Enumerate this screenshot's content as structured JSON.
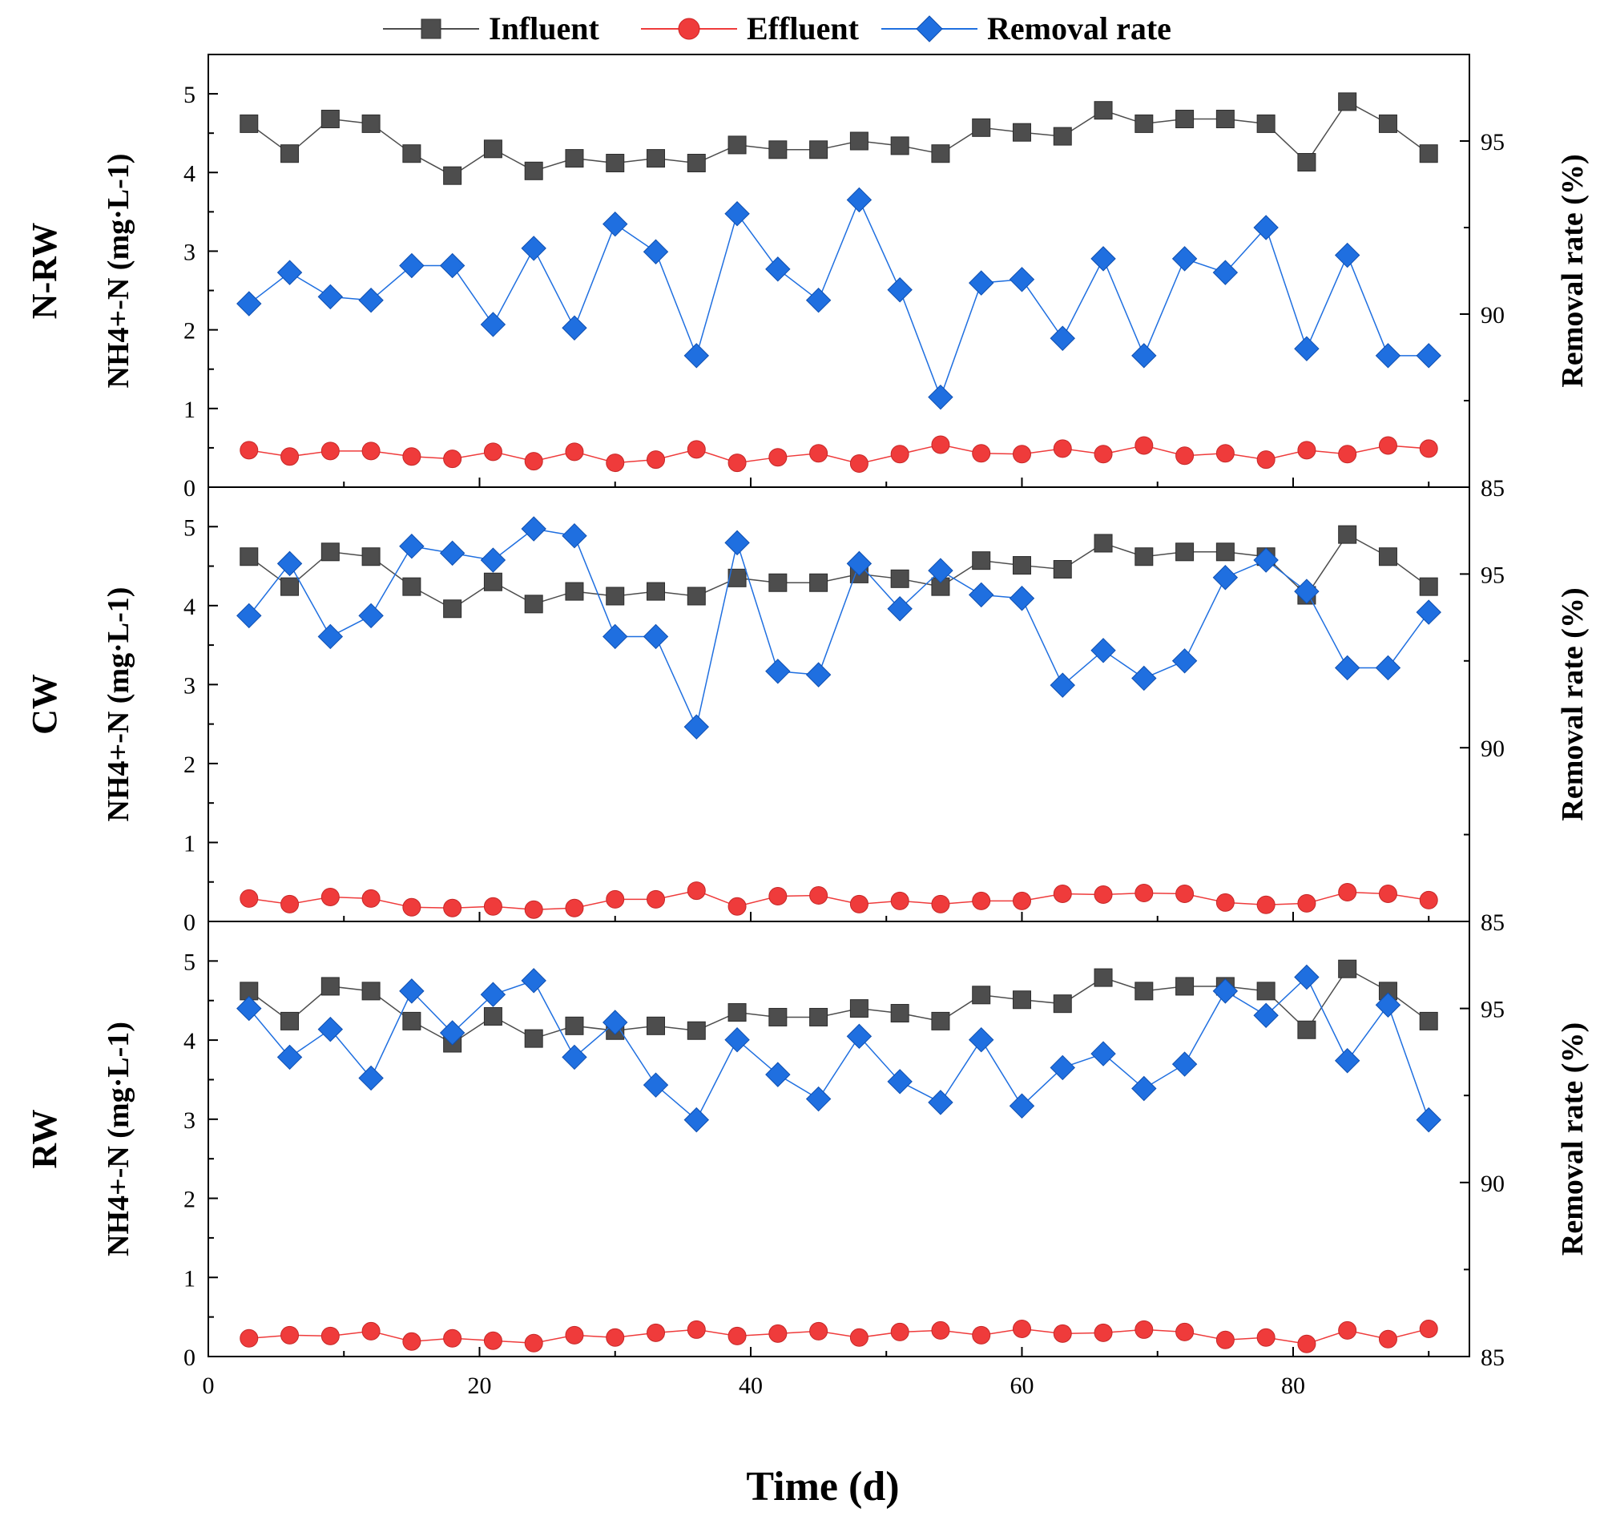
{
  "chart_data": {
    "type": "line",
    "xlabel": "Time (d)",
    "xlim": [
      0,
      93
    ],
    "x_ticks": [
      "0",
      "20",
      "40",
      "60",
      "80"
    ],
    "y_left_ticks": [
      "0",
      "1",
      "2",
      "3",
      "4",
      "5"
    ],
    "y_right_ticks": [
      "85",
      "90",
      "95"
    ],
    "legend": [
      "Influent",
      "Effluent",
      "Removal rate"
    ],
    "colors": {
      "influent": "#4d4d4d",
      "effluent": "#ef3b3b",
      "removal": "#1f6fe0"
    },
    "x": [
      3,
      6,
      9,
      12,
      15,
      18,
      21,
      24,
      27,
      30,
      33,
      36,
      39,
      42,
      45,
      48,
      51,
      54,
      57,
      60,
      63,
      66,
      69,
      72,
      75,
      78,
      81,
      84,
      87,
      90
    ],
    "panels": [
      {
        "label": "N-RW",
        "ylabel_left": "NH4+-N (mg·L-1)",
        "ylabel_right": "Removal rate (%)",
        "ylim_left": [
          0,
          5.5
        ],
        "ylim_right": [
          85,
          97.5
        ],
        "series": [
          {
            "name": "Influent",
            "values": [
              4.62,
              4.24,
              4.68,
              4.62,
              4.24,
              3.96,
              4.3,
              4.02,
              4.18,
              4.12,
              4.18,
              4.12,
              4.35,
              4.29,
              4.29,
              4.4,
              4.34,
              4.24,
              4.57,
              4.51,
              4.46,
              4.79,
              4.62,
              4.68,
              4.68,
              4.62,
              4.13,
              4.9,
              4.62,
              4.24
            ]
          },
          {
            "name": "Effluent",
            "values": [
              0.47,
              0.39,
              0.46,
              0.46,
              0.39,
              0.36,
              0.45,
              0.33,
              0.45,
              0.31,
              0.35,
              0.48,
              0.31,
              0.38,
              0.43,
              0.3,
              0.42,
              0.54,
              0.43,
              0.42,
              0.49,
              0.42,
              0.53,
              0.4,
              0.43,
              0.35,
              0.47,
              0.42,
              0.53,
              0.49
            ]
          },
          {
            "name": "Removal rate",
            "values": [
              90.3,
              91.2,
              90.5,
              90.4,
              91.4,
              91.4,
              89.7,
              91.9,
              89.6,
              92.6,
              91.8,
              88.8,
              92.9,
              91.3,
              90.4,
              93.3,
              90.7,
              87.6,
              90.9,
              91.0,
              89.3,
              91.6,
              88.8,
              91.6,
              91.2,
              92.5,
              89.0,
              91.7,
              88.8,
              88.8
            ]
          }
        ]
      },
      {
        "label": "CW",
        "ylabel_left": "NH4+-N (mg·L-1)",
        "ylabel_right": "Removal rate (%)",
        "ylim_left": [
          0,
          5.5
        ],
        "ylim_right": [
          85,
          97.5
        ],
        "series": [
          {
            "name": "Influent",
            "values": [
              4.62,
              4.24,
              4.68,
              4.62,
              4.24,
              3.96,
              4.3,
              4.02,
              4.18,
              4.12,
              4.18,
              4.12,
              4.35,
              4.29,
              4.29,
              4.4,
              4.34,
              4.24,
              4.57,
              4.51,
              4.46,
              4.79,
              4.62,
              4.68,
              4.68,
              4.62,
              4.13,
              4.9,
              4.62,
              4.24
            ]
          },
          {
            "name": "Effluent",
            "values": [
              0.29,
              0.22,
              0.31,
              0.29,
              0.18,
              0.17,
              0.19,
              0.15,
              0.17,
              0.28,
              0.28,
              0.39,
              0.19,
              0.32,
              0.33,
              0.22,
              0.26,
              0.22,
              0.26,
              0.26,
              0.35,
              0.34,
              0.36,
              0.35,
              0.24,
              0.21,
              0.23,
              0.37,
              0.35,
              0.27
            ]
          },
          {
            "name": "Removal rate",
            "values": [
              93.8,
              95.3,
              93.2,
              93.8,
              95.8,
              95.6,
              95.4,
              96.3,
              96.1,
              93.2,
              93.2,
              90.6,
              95.9,
              92.2,
              92.1,
              95.3,
              94.0,
              95.1,
              94.4,
              94.3,
              91.8,
              92.8,
              92.0,
              92.5,
              94.9,
              95.4,
              94.5,
              92.3,
              92.3,
              93.9
            ]
          }
        ]
      },
      {
        "label": "RW",
        "ylabel_left": "NH4+-N (mg·L-1)",
        "ylabel_right": "Removal rate (%)",
        "ylim_left": [
          0,
          5.5
        ],
        "ylim_right": [
          85,
          97.5
        ],
        "series": [
          {
            "name": "Influent",
            "values": [
              4.62,
              4.24,
              4.68,
              4.62,
              4.24,
              3.96,
              4.3,
              4.02,
              4.18,
              4.12,
              4.18,
              4.12,
              4.35,
              4.29,
              4.29,
              4.4,
              4.34,
              4.24,
              4.57,
              4.51,
              4.46,
              4.79,
              4.62,
              4.68,
              4.68,
              4.62,
              4.13,
              4.9,
              4.62,
              4.24
            ]
          },
          {
            "name": "Effluent",
            "values": [
              0.23,
              0.27,
              0.26,
              0.32,
              0.19,
              0.23,
              0.2,
              0.17,
              0.27,
              0.24,
              0.3,
              0.34,
              0.26,
              0.29,
              0.32,
              0.24,
              0.31,
              0.33,
              0.27,
              0.35,
              0.29,
              0.3,
              0.34,
              0.31,
              0.21,
              0.24,
              0.16,
              0.33,
              0.22,
              0.35
            ]
          },
          {
            "name": "Removal rate",
            "values": [
              95.0,
              93.6,
              94.4,
              93.0,
              95.5,
              94.3,
              95.4,
              95.8,
              93.6,
              94.6,
              92.8,
              91.8,
              94.1,
              93.1,
              92.4,
              94.2,
              92.9,
              92.3,
              94.1,
              92.2,
              93.3,
              93.7,
              92.7,
              93.4,
              95.5,
              94.8,
              95.9,
              93.5,
              95.1,
              91.8
            ]
          }
        ]
      }
    ]
  }
}
